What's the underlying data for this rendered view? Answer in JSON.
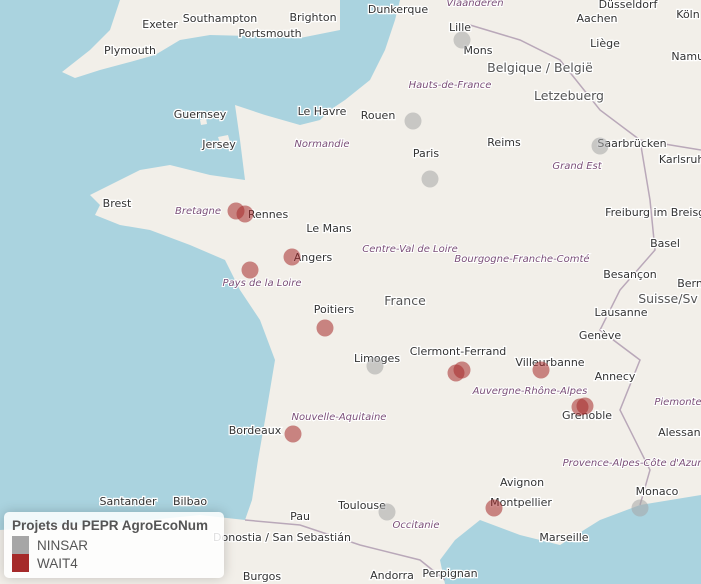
{
  "map": {
    "countries": [
      "France",
      "Belgique / België",
      "Letzebuerg",
      "Suisse/Sv"
    ],
    "regions": [
      "Normandie",
      "Bretagne",
      "Pays de la Loire",
      "Centre-Val de Loire",
      "Hauts-de-France",
      "Grand Est",
      "Bourgogne-Franche-Comté",
      "Nouvelle-Aquitaine",
      "Auvergne-Rhône-Alpes",
      "Occitanie",
      "Provence-Alpes-Côte d'Azur",
      "Piemonte",
      "Vlaanderen"
    ],
    "cities": [
      "Exeter",
      "Southampton",
      "Brighton",
      "Dunkerque",
      "Lille",
      "Aachen",
      "Düsseldorf",
      "Plymouth",
      "Portsmouth",
      "Mons",
      "Liège",
      "Köln",
      "Guernsey",
      "Jersey",
      "Le Havre",
      "Rouen",
      "Paris",
      "Reims",
      "Saarbrücken",
      "Brest",
      "Rennes",
      "Le Mans",
      "Angers",
      "Poitiers",
      "Limoges",
      "Clermont-Ferrand",
      "Villeurbanne",
      "Annecy",
      "Genève",
      "Lausanne",
      "Besançon",
      "Basel",
      "Freiburg im Breisgau",
      "Grenoble",
      "Bordeaux",
      "Toulouse",
      "Montpellier",
      "Avignon",
      "Marseille",
      "Monaco",
      "Pau",
      "Donostia / San Sebastián",
      "Santander",
      "Bilbao",
      "Andorra",
      "Perpignan",
      "Burgos",
      "Karlsruhe",
      "Bern",
      "Namur",
      "Alessandria"
    ]
  },
  "legend": {
    "title": "Projets du PEPR AgroEcoNum",
    "items": [
      {
        "label": "NINSAR",
        "color": "#a6a6a6"
      },
      {
        "label": "WAIT4",
        "color": "#a52a2a"
      }
    ]
  },
  "projects": {
    "NINSAR": [
      "Lille",
      "Rouen",
      "Paris",
      "Saarbrücken",
      "Limoges",
      "Toulouse",
      "Monaco"
    ],
    "WAIT4": [
      "Rennes",
      "Rennes",
      "Angers",
      "Nantes",
      "Poitiers",
      "Clermont-Ferrand",
      "Clermont-Ferrand",
      "Villeurbanne",
      "Grenoble",
      "Grenoble",
      "Bordeaux",
      "Montpellier"
    ]
  }
}
